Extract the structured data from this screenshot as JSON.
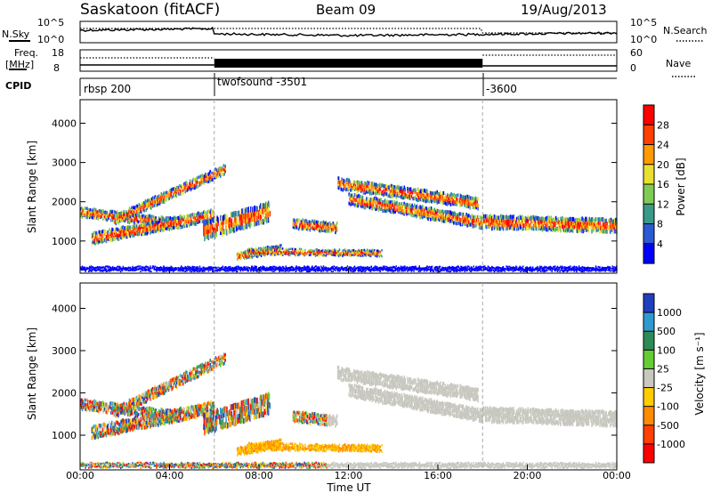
{
  "header": {
    "site": "Saskatoon (fitACF)",
    "beam": "Beam 09",
    "date": "19/Aug/2013"
  },
  "top_panel": {
    "left_label": "N.Sky",
    "right_label": "N.Search",
    "left_ticks": [
      "10^5",
      "10^0"
    ],
    "right_ticks": [
      "10^5",
      "10^0"
    ]
  },
  "freq_panel": {
    "left_label_line1": "Freq.",
    "left_label_line2": "[MHz]",
    "right_label": "Nave",
    "left_ticks": [
      "18",
      "8"
    ],
    "right_ticks": [
      "60",
      "0"
    ]
  },
  "cpid": {
    "label": "CPID",
    "segments": [
      {
        "start_hr": 0,
        "text": "rbsp 200"
      },
      {
        "start_hr": 6,
        "text": "twofsound -3501"
      },
      {
        "start_hr": 18,
        "text": "-3600"
      }
    ]
  },
  "chart_data": [
    {
      "type": "heatmap",
      "name": "power",
      "xlabel": "",
      "ylabel": "Slant Range [km]",
      "xlim": [
        0,
        24
      ],
      "ylim": [
        180,
        4600
      ],
      "yticks": [
        "1000",
        "2000",
        "3000",
        "4000"
      ],
      "colorbar_label": "Power [dB]",
      "colorbar_ticks": [
        "4",
        "8",
        "12",
        "16",
        "20",
        "24",
        "28"
      ],
      "colors": [
        "#0000ff",
        "#2a5bd4",
        "#3a9a88",
        "#7fcc55",
        "#e8e030",
        "#ff9a00",
        "#ff4000",
        "#ff0000"
      ]
    },
    {
      "type": "heatmap",
      "name": "velocity",
      "xlabel": "Time UT",
      "ylabel": "Slant Range [km]",
      "xlim": [
        0,
        24
      ],
      "ylim": [
        180,
        4600
      ],
      "xticks": [
        "00:00",
        "04:00",
        "08:00",
        "12:00",
        "16:00",
        "20:00",
        "00:00"
      ],
      "yticks": [
        "1000",
        "2000",
        "3000",
        "4000"
      ],
      "colorbar_label": "Velocity [m s⁻¹]",
      "colorbar_ticks": [
        "1000",
        "500",
        "100",
        "25",
        "-25",
        "-100",
        "-500",
        "-1000"
      ],
      "colors": [
        "#1f3fc0",
        "#2f9ad0",
        "#2e8b57",
        "#66cc33",
        "#c8c8c0",
        "#ffcc00",
        "#ff8c00",
        "#ff4000",
        "#ff0000"
      ]
    }
  ]
}
